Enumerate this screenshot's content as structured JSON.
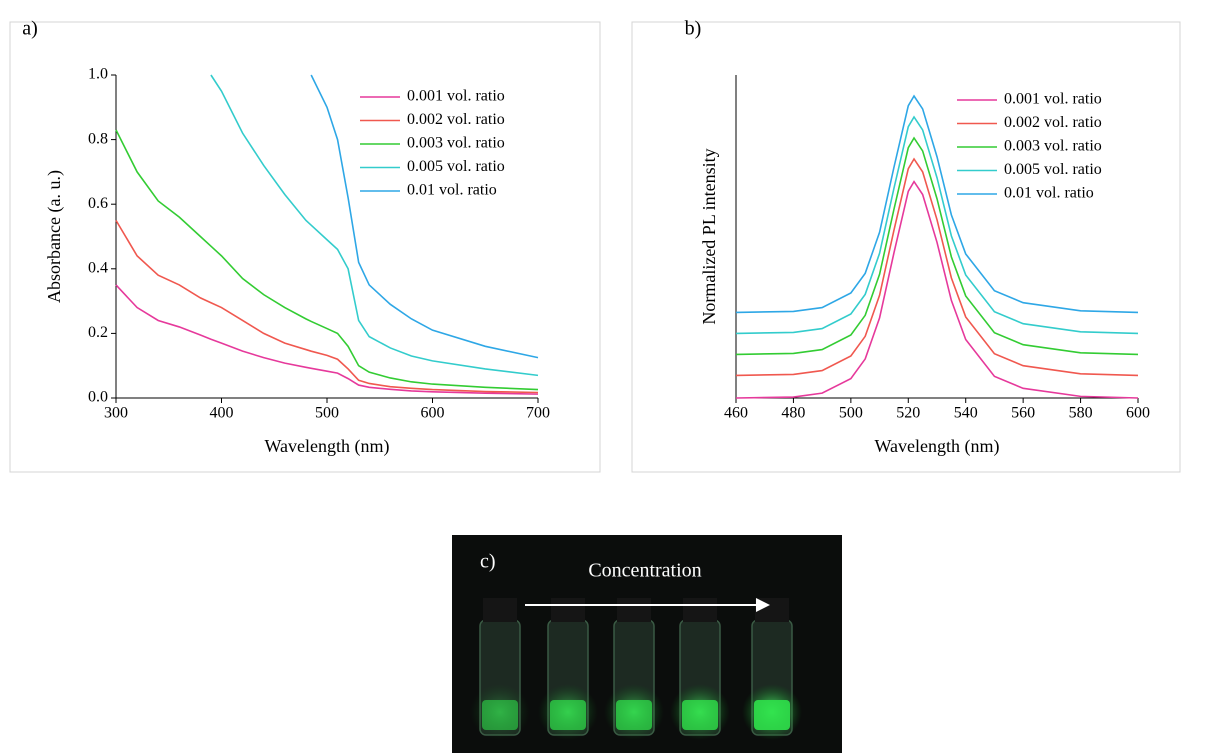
{
  "chart_data": [
    {
      "type": "line",
      "label": "a)",
      "xlabel": "Wavelength (nm)",
      "ylabel": "Absorbance (a. u.)",
      "x": [
        300,
        320,
        340,
        360,
        380,
        390,
        400,
        420,
        440,
        460,
        480,
        485,
        500,
        510,
        520,
        530,
        540,
        560,
        580,
        600,
        650,
        700
      ],
      "series": [
        {
          "name": "0.001 vol. ratio",
          "color": "#e6399b",
          "values": [
            0.35,
            0.28,
            0.24,
            0.22,
            0.195,
            0.182,
            0.17,
            0.145,
            0.125,
            0.108,
            0.095,
            0.092,
            0.083,
            0.077,
            0.06,
            0.04,
            0.033,
            0.027,
            0.022,
            0.019,
            0.015,
            0.012
          ]
        },
        {
          "name": "0.002 vol. ratio",
          "color": "#f0584f",
          "values": [
            0.55,
            0.44,
            0.38,
            0.35,
            0.31,
            0.295,
            0.28,
            0.24,
            0.2,
            0.17,
            0.15,
            0.145,
            0.132,
            0.12,
            0.09,
            0.055,
            0.045,
            0.035,
            0.03,
            0.026,
            0.02,
            0.017
          ]
        },
        {
          "name": "0.003 vol. ratio",
          "color": "#33cc33",
          "values": [
            0.83,
            0.7,
            0.61,
            0.56,
            0.5,
            0.47,
            0.44,
            0.37,
            0.32,
            0.28,
            0.245,
            0.237,
            0.215,
            0.2,
            0.16,
            0.1,
            0.08,
            0.062,
            0.05,
            0.043,
            0.033,
            0.026
          ]
        },
        {
          "name": "0.005 vol. ratio",
          "color": "#33cccc",
          "values": [
            null,
            null,
            null,
            null,
            null,
            1.0,
            0.95,
            0.82,
            0.72,
            0.63,
            0.55,
            0.535,
            0.49,
            0.46,
            0.4,
            0.24,
            0.19,
            0.155,
            0.13,
            0.115,
            0.09,
            0.07
          ]
        },
        {
          "name": "0.01 vol. ratio",
          "color": "#2ea7e6",
          "values": [
            null,
            null,
            null,
            null,
            null,
            null,
            null,
            null,
            null,
            null,
            null,
            1.0,
            0.9,
            0.8,
            0.62,
            0.42,
            0.35,
            0.29,
            0.245,
            0.21,
            0.16,
            0.125
          ]
        }
      ],
      "xlim": [
        300,
        700
      ],
      "xticks": [
        300,
        400,
        500,
        600,
        700
      ],
      "ylim": [
        0,
        1
      ],
      "yticks": [
        {
          "value": 0,
          "label": "0.0"
        },
        0.2,
        0.4,
        0.6,
        0.8,
        {
          "value": 1,
          "label": "1.0"
        }
      ],
      "legend": "upper right"
    },
    {
      "type": "line",
      "label": "b)",
      "xlabel": "Wavelength (nm)",
      "ylabel": "Normalized PL intensity",
      "x": [
        460,
        480,
        490,
        500,
        505,
        510,
        515,
        520,
        522,
        525,
        530,
        535,
        540,
        550,
        560,
        580,
        600
      ],
      "series": [
        {
          "name": "0.001 vol. ratio",
          "color": "#e6399b",
          "values": [
            0,
            0.003,
            0.015,
            0.06,
            0.121,
            0.248,
            0.449,
            0.64,
            0.67,
            0.63,
            0.482,
            0.302,
            0.181,
            0.067,
            0.03,
            0.005,
            0
          ]
        },
        {
          "name": "0.002 vol. ratio",
          "color": "#f0584f",
          "values": [
            0.07,
            0.073,
            0.085,
            0.13,
            0.191,
            0.318,
            0.519,
            0.71,
            0.74,
            0.7,
            0.552,
            0.372,
            0.251,
            0.137,
            0.1,
            0.075,
            0.07
          ]
        },
        {
          "name": "0.003 vol. ratio",
          "color": "#33cc33",
          "values": [
            0.135,
            0.138,
            0.15,
            0.195,
            0.256,
            0.383,
            0.584,
            0.775,
            0.805,
            0.765,
            0.617,
            0.437,
            0.316,
            0.202,
            0.165,
            0.14,
            0.135
          ]
        },
        {
          "name": "0.005 vol. ratio",
          "color": "#33cccc",
          "values": [
            0.2,
            0.203,
            0.215,
            0.26,
            0.321,
            0.448,
            0.649,
            0.84,
            0.87,
            0.83,
            0.682,
            0.502,
            0.381,
            0.267,
            0.23,
            0.205,
            0.2
          ]
        },
        {
          "name": "0.01 vol. ratio",
          "color": "#2ea7e6",
          "values": [
            0.265,
            0.268,
            0.28,
            0.325,
            0.386,
            0.513,
            0.714,
            0.905,
            0.935,
            0.895,
            0.747,
            0.567,
            0.446,
            0.332,
            0.295,
            0.27,
            0.265
          ]
        }
      ],
      "xlim": [
        460,
        600
      ],
      "xticks": [
        460,
        480,
        500,
        520,
        540,
        560,
        580,
        600
      ],
      "ylim": [
        0,
        1
      ],
      "legend": "upper right"
    }
  ],
  "photo": {
    "label": "c)",
    "caption": "Concentration"
  }
}
